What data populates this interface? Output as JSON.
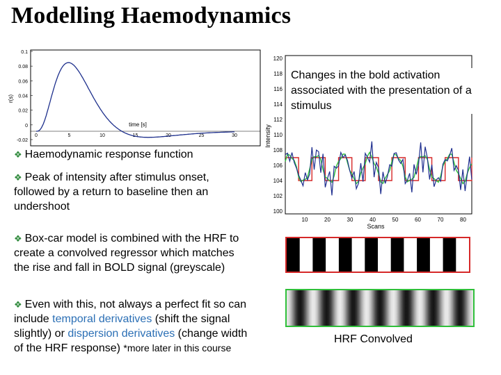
{
  "title": "Modelling Haemodynamics",
  "hrf_plot": {
    "ylabel": "r(s)",
    "xlabel": "time [s]",
    "yticks": [
      "0.1",
      "0.08",
      "0.06",
      "0.04",
      "0.02",
      "0",
      "-0.02"
    ],
    "xticks": [
      "0",
      "5",
      "10",
      "15",
      "20",
      "25",
      "30"
    ]
  },
  "bold_plot": {
    "ylabel": "Intensity",
    "xlabel": "Scans",
    "yticks": [
      "120",
      "118",
      "116",
      "114",
      "112",
      "110",
      "108",
      "106",
      "104",
      "102",
      "100"
    ],
    "xticks": [
      "10",
      "20",
      "30",
      "40",
      "50",
      "60",
      "70",
      "80"
    ]
  },
  "caption": "Changes in the bold activation associated with  the presentation of a stimulus",
  "bullets": {
    "b1": "Haemodynamic response function",
    "b2": "Peak of intensity after stimulus onset, followed by a return to baseline then an undershoot",
    "b3": "Box-car model is combined with the HRF to create a convolved regressor which matches the rise and fall in BOLD signal (greyscale)",
    "b4_a": "Even with this, not always a perfect fit so can include ",
    "b4_b": "temporal derivatives",
    "b4_c": " (shift the signal slightly) or ",
    "b4_d": "dispersion derivatives",
    "b4_e": " (change width of the HRF response) ",
    "b4_f": "*more later in this course"
  },
  "hrf_convolved_label": "HRF Convolved",
  "colors": {
    "blue_link": "#2b6fb5",
    "red_box": "#d62828",
    "green_box": "#2fbf3a",
    "model_red": "#d62828",
    "fit_green": "#31c43c",
    "data_blue": "#1f2f8f"
  }
}
